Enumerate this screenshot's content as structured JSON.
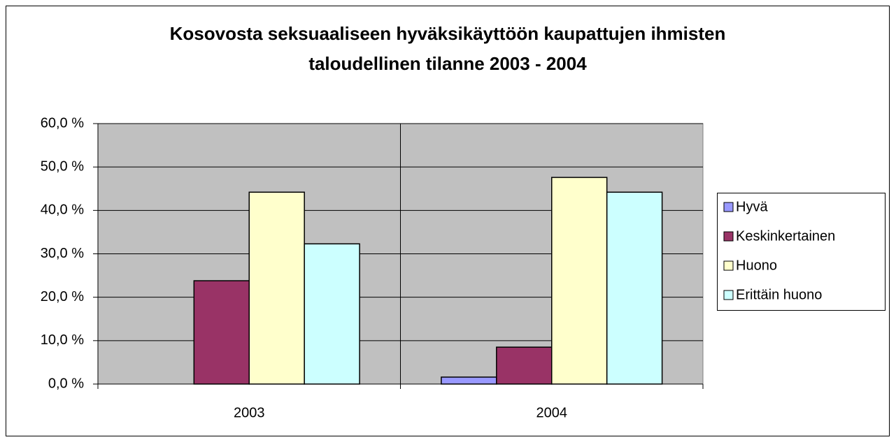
{
  "chart_data": {
    "type": "bar",
    "title": [
      "Kosovosta seksuaaliseen hyväksikäyttöön kaupattujen ihmisten",
      "taloudellinen tilanne 2003 - 2004"
    ],
    "categories": [
      "2003",
      "2004"
    ],
    "series": [
      {
        "name": "Hyvä",
        "color": "#9999ff",
        "values": [
          0,
          1.6
        ]
      },
      {
        "name": "Keskinkertainen",
        "color": "#993366",
        "values": [
          23.8,
          8.5
        ]
      },
      {
        "name": "Huono",
        "color": "#ffffcc",
        "values": [
          44.2,
          47.6
        ]
      },
      {
        "name": "Erittäin huono",
        "color": "#ccffff",
        "values": [
          32.3,
          44.2
        ]
      }
    ],
    "ylim": [
      0,
      60
    ],
    "yticks": [
      {
        "value": 0,
        "label": "0,0 %"
      },
      {
        "value": 10,
        "label": "10,0 %"
      },
      {
        "value": 20,
        "label": "20,0 %"
      },
      {
        "value": 30,
        "label": "30,0 %"
      },
      {
        "value": 40,
        "label": "40,0 %"
      },
      {
        "value": 50,
        "label": "50,0 %"
      },
      {
        "value": 60,
        "label": "60,0 %"
      }
    ],
    "grid": true,
    "legend": "right",
    "plot_background": "#c0c0c0"
  }
}
